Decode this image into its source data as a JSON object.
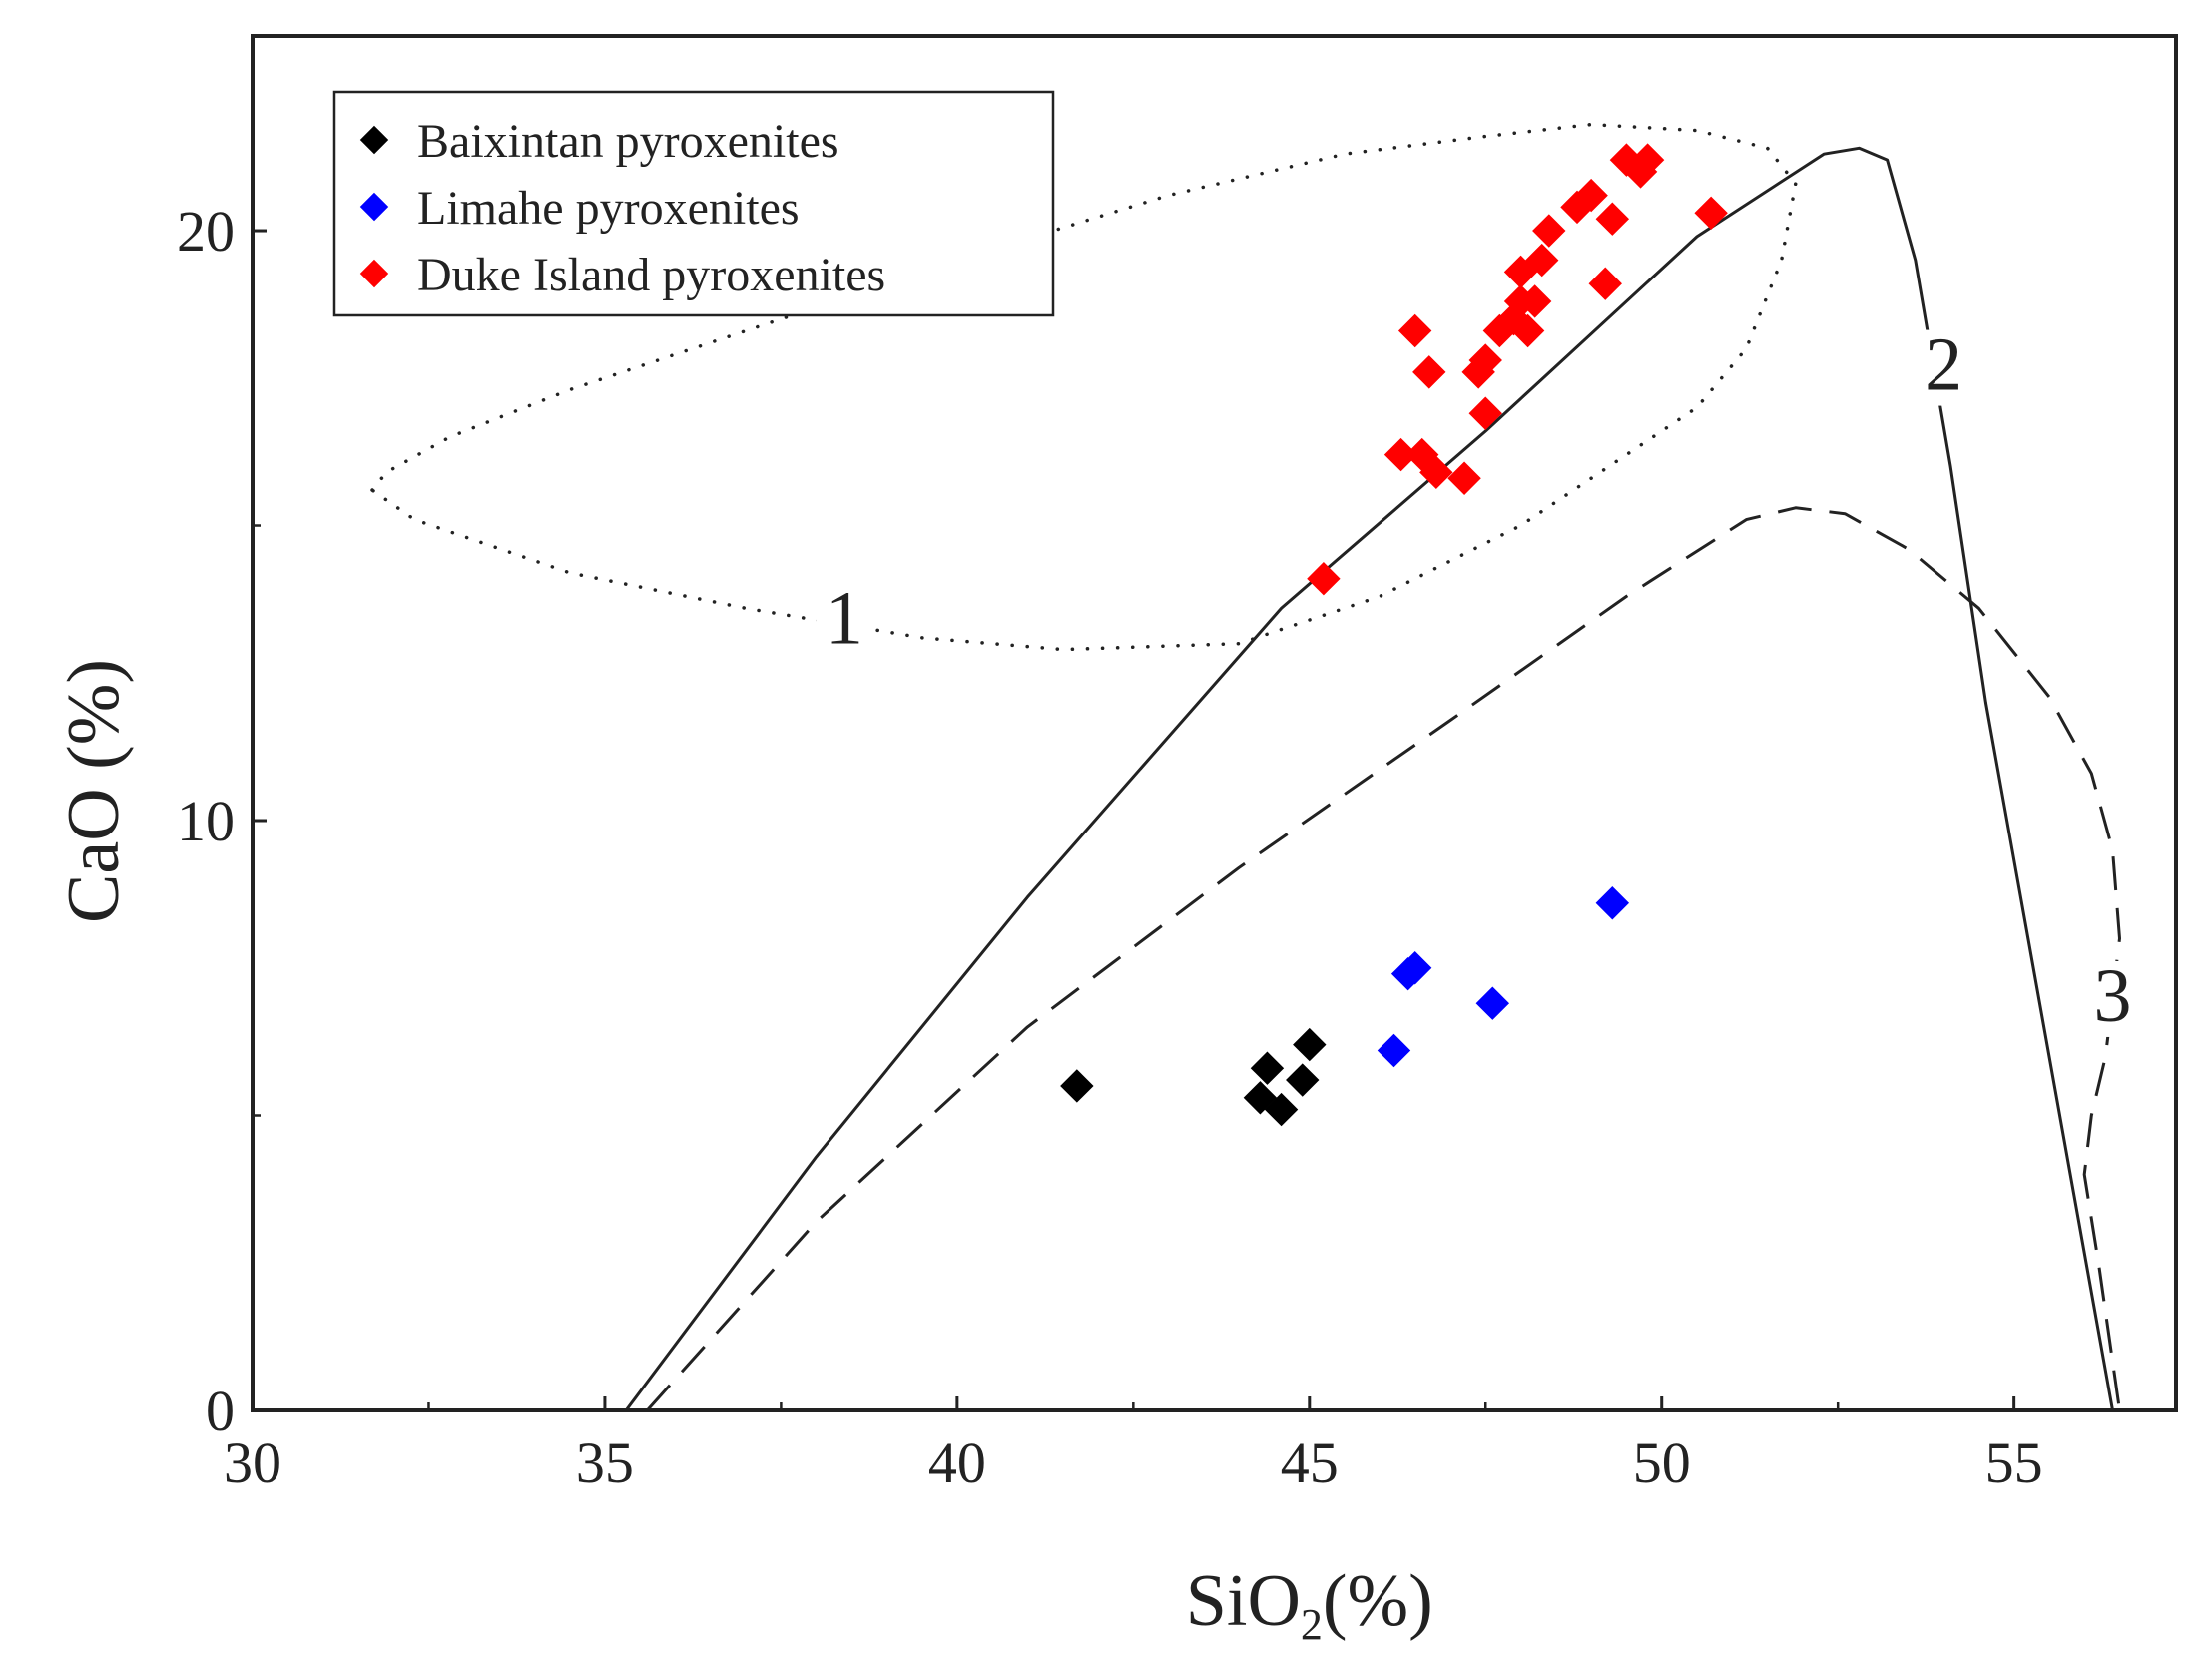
{
  "chart_data": {
    "type": "scatter",
    "xlabel_main": "SiO",
    "xlabel_sub": "2",
    "xlabel_tail": "(%)",
    "ylabel": "CaO (%)",
    "xlim": [
      30,
      57.3
    ],
    "ylim": [
      0,
      23.3
    ],
    "x_ticks": [
      30,
      35,
      40,
      45,
      50,
      55
    ],
    "y_ticks": [
      0,
      10,
      20
    ],
    "x_ticks_minor": [
      32.5,
      37.5,
      42.5,
      47.5,
      52.5,
      57.5
    ],
    "y_ticks_minor": [
      5,
      15
    ],
    "grid": false,
    "legend_position": "top-left",
    "series": [
      {
        "name": "Baixintan pyroxenites",
        "color": "#000000",
        "marker": "diamond",
        "points": [
          [
            41.7,
            5.5
          ],
          [
            44.4,
            5.8
          ],
          [
            44.3,
            5.3
          ],
          [
            44.6,
            5.1
          ],
          [
            44.9,
            5.6
          ],
          [
            45.0,
            6.2
          ]
        ]
      },
      {
        "name": "Limahe pyroxenites",
        "color": "#0000ff",
        "marker": "diamond",
        "points": [
          [
            46.2,
            6.1
          ],
          [
            46.4,
            7.4
          ],
          [
            46.5,
            7.5
          ],
          [
            47.6,
            6.9
          ],
          [
            49.3,
            8.6
          ]
        ]
      },
      {
        "name": "Duke Island pyroxenites",
        "color": "#ff0000",
        "marker": "diamond",
        "points": [
          [
            45.2,
            14.1
          ],
          [
            46.3,
            16.2
          ],
          [
            46.6,
            16.2
          ],
          [
            46.8,
            15.9
          ],
          [
            47.2,
            15.8
          ],
          [
            47.5,
            16.9
          ],
          [
            47.4,
            17.6
          ],
          [
            47.5,
            17.8
          ],
          [
            46.5,
            18.3
          ],
          [
            46.7,
            17.6
          ],
          [
            47.7,
            18.3
          ],
          [
            47.9,
            18.5
          ],
          [
            48.0,
            18.8
          ],
          [
            48.1,
            18.3
          ],
          [
            48.2,
            18.8
          ],
          [
            48.3,
            19.5
          ],
          [
            48.0,
            19.3
          ],
          [
            48.4,
            20.0
          ],
          [
            48.8,
            20.4
          ],
          [
            49.0,
            20.6
          ],
          [
            49.2,
            19.1
          ],
          [
            49.3,
            20.2
          ],
          [
            49.5,
            21.2
          ],
          [
            49.7,
            21.0
          ],
          [
            49.8,
            21.2
          ],
          [
            50.7,
            20.3
          ]
        ]
      }
    ],
    "boundaries": [
      {
        "label": "1",
        "style": "dotted",
        "points": [
          [
            31.7,
            15.6
          ],
          [
            31.9,
            15.9
          ],
          [
            32.8,
            16.5
          ],
          [
            34.5,
            17.3
          ],
          [
            37.0,
            18.3
          ],
          [
            40.0,
            19.5
          ],
          [
            43.0,
            20.6
          ],
          [
            45.5,
            21.3
          ],
          [
            47.5,
            21.6
          ],
          [
            49.0,
            21.8
          ],
          [
            50.5,
            21.7
          ],
          [
            51.5,
            21.4
          ],
          [
            51.9,
            20.8
          ],
          [
            51.7,
            19.5
          ],
          [
            51.2,
            18.0
          ],
          [
            50.5,
            17.0
          ],
          [
            49.5,
            16.2
          ],
          [
            48.0,
            15.0
          ],
          [
            46.0,
            13.8
          ],
          [
            44.0,
            13.0
          ],
          [
            41.5,
            12.9
          ],
          [
            39.5,
            13.1
          ],
          [
            37.0,
            13.6
          ],
          [
            34.5,
            14.2
          ],
          [
            32.3,
            15.1
          ],
          [
            31.7,
            15.6
          ]
        ],
        "label_pos": [
          38.4,
          13.0
        ]
      },
      {
        "label": "2",
        "style": "solid",
        "points": [
          [
            35.3,
            0
          ],
          [
            38.0,
            4.3
          ],
          [
            41.0,
            8.7
          ],
          [
            44.6,
            13.6
          ],
          [
            47.5,
            16.6
          ],
          [
            50.5,
            19.9
          ],
          [
            52.3,
            21.3
          ],
          [
            52.8,
            21.4
          ],
          [
            53.2,
            21.2
          ],
          [
            53.6,
            19.5
          ],
          [
            54.1,
            16.0
          ],
          [
            54.6,
            12.0
          ],
          [
            55.2,
            8.0
          ],
          [
            55.8,
            4.0
          ],
          [
            56.4,
            0
          ]
        ],
        "label_pos": [
          54.0,
          17.3
        ]
      },
      {
        "label": "3",
        "style": "dashed",
        "points": [
          [
            35.6,
            0
          ],
          [
            38.0,
            3.2
          ],
          [
            41.0,
            6.5
          ],
          [
            44.0,
            9.2
          ],
          [
            47.0,
            11.7
          ],
          [
            49.5,
            13.8
          ],
          [
            51.2,
            15.1
          ],
          [
            51.9,
            15.3
          ],
          [
            52.6,
            15.2
          ],
          [
            53.5,
            14.6
          ],
          [
            54.5,
            13.6
          ],
          [
            55.5,
            12.1
          ],
          [
            56.1,
            10.8
          ],
          [
            56.4,
            9.5
          ],
          [
            56.5,
            8.0
          ],
          [
            56.3,
            6.0
          ],
          [
            56.1,
            5.0
          ],
          [
            56.0,
            4.0
          ],
          [
            56.2,
            2.5
          ],
          [
            56.5,
            0
          ]
        ],
        "label_pos": [
          56.4,
          6.6
        ]
      }
    ]
  }
}
